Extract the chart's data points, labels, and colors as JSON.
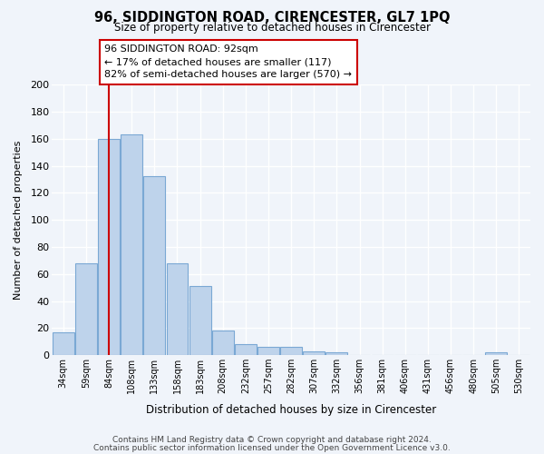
{
  "title": "96, SIDDINGTON ROAD, CIRENCESTER, GL7 1PQ",
  "subtitle": "Size of property relative to detached houses in Cirencester",
  "xlabel": "Distribution of detached houses by size in Cirencester",
  "ylabel": "Number of detached properties",
  "bar_labels": [
    "34sqm",
    "59sqm",
    "84sqm",
    "108sqm",
    "133sqm",
    "158sqm",
    "183sqm",
    "208sqm",
    "232sqm",
    "257sqm",
    "282sqm",
    "307sqm",
    "332sqm",
    "356sqm",
    "381sqm",
    "406sqm",
    "431sqm",
    "456sqm",
    "480sqm",
    "505sqm",
    "530sqm"
  ],
  "bar_heights": [
    17,
    68,
    160,
    163,
    132,
    68,
    51,
    18,
    8,
    6,
    6,
    3,
    2,
    0,
    0,
    0,
    0,
    0,
    0,
    2,
    0
  ],
  "bar_color": "#bed3eb",
  "bar_edge_color": "#7aa8d4",
  "vline_x": 2,
  "vline_color": "#cc0000",
  "ylim": [
    0,
    200
  ],
  "yticks": [
    0,
    20,
    40,
    60,
    80,
    100,
    120,
    140,
    160,
    180,
    200
  ],
  "annotation_line1": "96 SIDDINGTON ROAD: 92sqm",
  "annotation_line2": "← 17% of detached houses are smaller (117)",
  "annotation_line3": "82% of semi-detached houses are larger (570) →",
  "background_color": "#f0f4fa",
  "plot_bg_color": "#f0f4fa",
  "grid_color": "#ffffff",
  "footnote1": "Contains HM Land Registry data © Crown copyright and database right 2024.",
  "footnote2": "Contains public sector information licensed under the Open Government Licence v3.0."
}
